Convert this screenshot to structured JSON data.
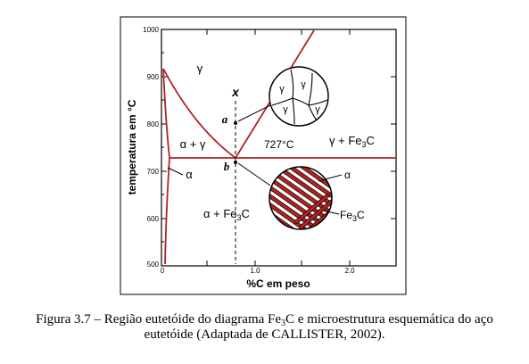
{
  "diagram": {
    "y_axis_label": "temperatura em °C",
    "x_axis_label": "%C em peso",
    "y_ticks": [
      "1000",
      "900",
      "800",
      "700",
      "600",
      "500"
    ],
    "x_ticks": [
      "0",
      "1.0",
      "2.0"
    ],
    "regions": {
      "gamma": "γ",
      "alpha_gamma": "α + γ",
      "alpha_left": "α",
      "alpha_fe3c": "α + Fe",
      "gamma_fe3c": "γ + Fe",
      "fe3c_sub": "3"
    },
    "eutectoid_temp": "727°C",
    "markers": {
      "x": "x",
      "a": "a",
      "b": "b"
    },
    "micro_a_grains": [
      "γ",
      "γ",
      "γ",
      "γ"
    ],
    "micro_b_labels": {
      "alpha": "α",
      "fe3c": "Fe",
      "fe3c_sub": "3"
    },
    "curve_color": "#b22222"
  },
  "caption": {
    "line1_pre": "Figura 3.7 – Região eutetóide do diagrama Fe",
    "line1_sub": "3",
    "line1_post": "C e microestrutura esquemática do aço",
    "line2": "eutetóide (Adaptada de CALLISTER, 2002)."
  }
}
